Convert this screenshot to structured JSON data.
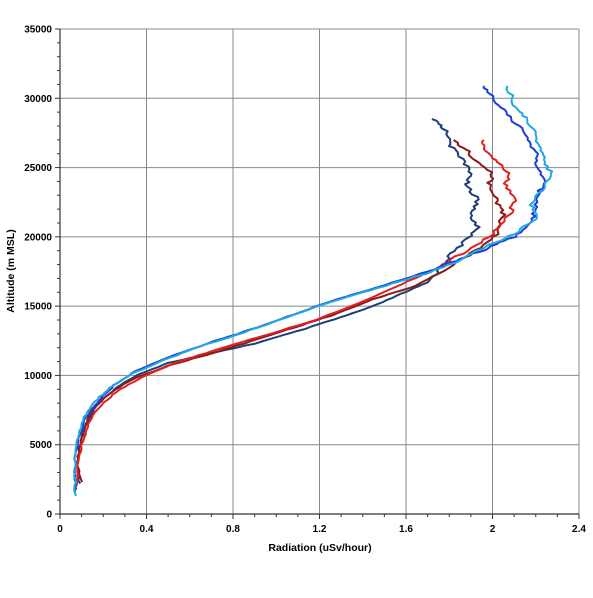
{
  "chart_data": {
    "type": "line",
    "title": "",
    "xlabel": "Radiation (uSv/hour)",
    "ylabel": "Altitude (m MSL)",
    "xlim": [
      0,
      2.4
    ],
    "ylim": [
      0,
      35000
    ],
    "x_ticks": [
      "0",
      "0.4",
      "0.8",
      "1.2",
      "1.6",
      "2",
      "2.4"
    ],
    "y_ticks": [
      "0",
      "5000",
      "10000",
      "15000",
      "20000",
      "25000",
      "30000",
      "35000"
    ],
    "grid": true,
    "legend": "none",
    "series": [
      {
        "color": "#1f3f7a",
        "points": [
          [
            0.09,
            2200
          ],
          [
            0.08,
            3500
          ],
          [
            0.09,
            5000
          ],
          [
            0.12,
            6500
          ],
          [
            0.17,
            7800
          ],
          [
            0.25,
            9000
          ],
          [
            0.35,
            10000
          ],
          [
            0.5,
            10900
          ],
          [
            0.7,
            11600
          ],
          [
            0.9,
            12300
          ],
          [
            1.1,
            13200
          ],
          [
            1.3,
            14200
          ],
          [
            1.45,
            15000
          ],
          [
            1.58,
            15900
          ],
          [
            1.7,
            16700
          ],
          [
            1.75,
            17600
          ],
          [
            1.8,
            18600
          ],
          [
            1.88,
            19800
          ],
          [
            1.93,
            20700
          ],
          [
            1.9,
            21700
          ],
          [
            1.93,
            22700
          ],
          [
            1.88,
            23800
          ],
          [
            1.9,
            24700
          ],
          [
            1.85,
            25800
          ],
          [
            1.8,
            26700
          ],
          [
            1.78,
            27800
          ],
          [
            1.72,
            28500
          ]
        ]
      },
      {
        "color": "#8b1a1a",
        "points": [
          [
            0.1,
            2300
          ],
          [
            0.08,
            3500
          ],
          [
            0.09,
            4800
          ],
          [
            0.11,
            6200
          ],
          [
            0.15,
            7600
          ],
          [
            0.23,
            8700
          ],
          [
            0.33,
            9700
          ],
          [
            0.5,
            10700
          ],
          [
            0.68,
            11500
          ],
          [
            0.85,
            12300
          ],
          [
            1.05,
            13300
          ],
          [
            1.25,
            14300
          ],
          [
            1.45,
            15500
          ],
          [
            1.65,
            16500
          ],
          [
            1.8,
            17800
          ],
          [
            1.92,
            19000
          ],
          [
            2.02,
            20200
          ],
          [
            2.05,
            21600
          ],
          [
            2.02,
            22600
          ],
          [
            1.98,
            23600
          ],
          [
            2.0,
            24500
          ],
          [
            1.92,
            25500
          ],
          [
            1.88,
            26300
          ],
          [
            1.82,
            27000
          ]
        ]
      },
      {
        "color": "#e02020",
        "points": [
          [
            0.08,
            2000
          ],
          [
            0.08,
            3500
          ],
          [
            0.1,
            5000
          ],
          [
            0.13,
            6500
          ],
          [
            0.18,
            7700
          ],
          [
            0.26,
            8800
          ],
          [
            0.38,
            9900
          ],
          [
            0.55,
            11000
          ],
          [
            0.73,
            11900
          ],
          [
            0.95,
            12900
          ],
          [
            1.18,
            14000
          ],
          [
            1.38,
            15200
          ],
          [
            1.58,
            16600
          ],
          [
            1.75,
            17800
          ],
          [
            1.88,
            19000
          ],
          [
            2.0,
            20200
          ],
          [
            2.08,
            21600
          ],
          [
            2.1,
            22600
          ],
          [
            2.06,
            23700
          ],
          [
            2.08,
            24600
          ],
          [
            2.02,
            25400
          ],
          [
            1.97,
            26200
          ],
          [
            1.96,
            27000
          ]
        ]
      },
      {
        "color": "#1a3fd9",
        "points": [
          [
            0.07,
            1500
          ],
          [
            0.07,
            2500
          ],
          [
            0.07,
            4000
          ],
          [
            0.09,
            5500
          ],
          [
            0.12,
            7000
          ],
          [
            0.18,
            8200
          ],
          [
            0.25,
            9300
          ],
          [
            0.35,
            10300
          ],
          [
            0.5,
            11300
          ],
          [
            0.68,
            12300
          ],
          [
            0.88,
            13300
          ],
          [
            1.08,
            14400
          ],
          [
            1.28,
            15500
          ],
          [
            1.5,
            16500
          ],
          [
            1.7,
            17500
          ],
          [
            1.85,
            18400
          ],
          [
            1.98,
            19200
          ],
          [
            2.1,
            20000
          ],
          [
            2.18,
            21000
          ],
          [
            2.2,
            22000
          ],
          [
            2.21,
            23000
          ],
          [
            2.24,
            24000
          ],
          [
            2.2,
            25000
          ],
          [
            2.2,
            26000
          ],
          [
            2.16,
            27000
          ],
          [
            2.12,
            28000
          ],
          [
            2.06,
            29000
          ],
          [
            2.0,
            30000
          ],
          [
            1.96,
            30900
          ]
        ]
      },
      {
        "color": "#22a8e0",
        "points": [
          [
            0.07,
            1300
          ],
          [
            0.07,
            2500
          ],
          [
            0.07,
            4000
          ],
          [
            0.08,
            5500
          ],
          [
            0.11,
            7000
          ],
          [
            0.16,
            8100
          ],
          [
            0.23,
            9100
          ],
          [
            0.33,
            10100
          ],
          [
            0.48,
            11100
          ],
          [
            0.65,
            12100
          ],
          [
            0.85,
            13100
          ],
          [
            1.05,
            14200
          ],
          [
            1.25,
            15300
          ],
          [
            1.47,
            16300
          ],
          [
            1.68,
            17300
          ],
          [
            1.85,
            18300
          ],
          [
            1.97,
            19300
          ],
          [
            2.1,
            20200
          ],
          [
            2.2,
            21300
          ],
          [
            2.18,
            22300
          ],
          [
            2.22,
            23300
          ],
          [
            2.28,
            24400
          ],
          [
            2.24,
            25400
          ],
          [
            2.22,
            26400
          ],
          [
            2.2,
            27400
          ],
          [
            2.15,
            28600
          ],
          [
            2.1,
            29500
          ],
          [
            2.07,
            30900
          ]
        ]
      }
    ]
  }
}
